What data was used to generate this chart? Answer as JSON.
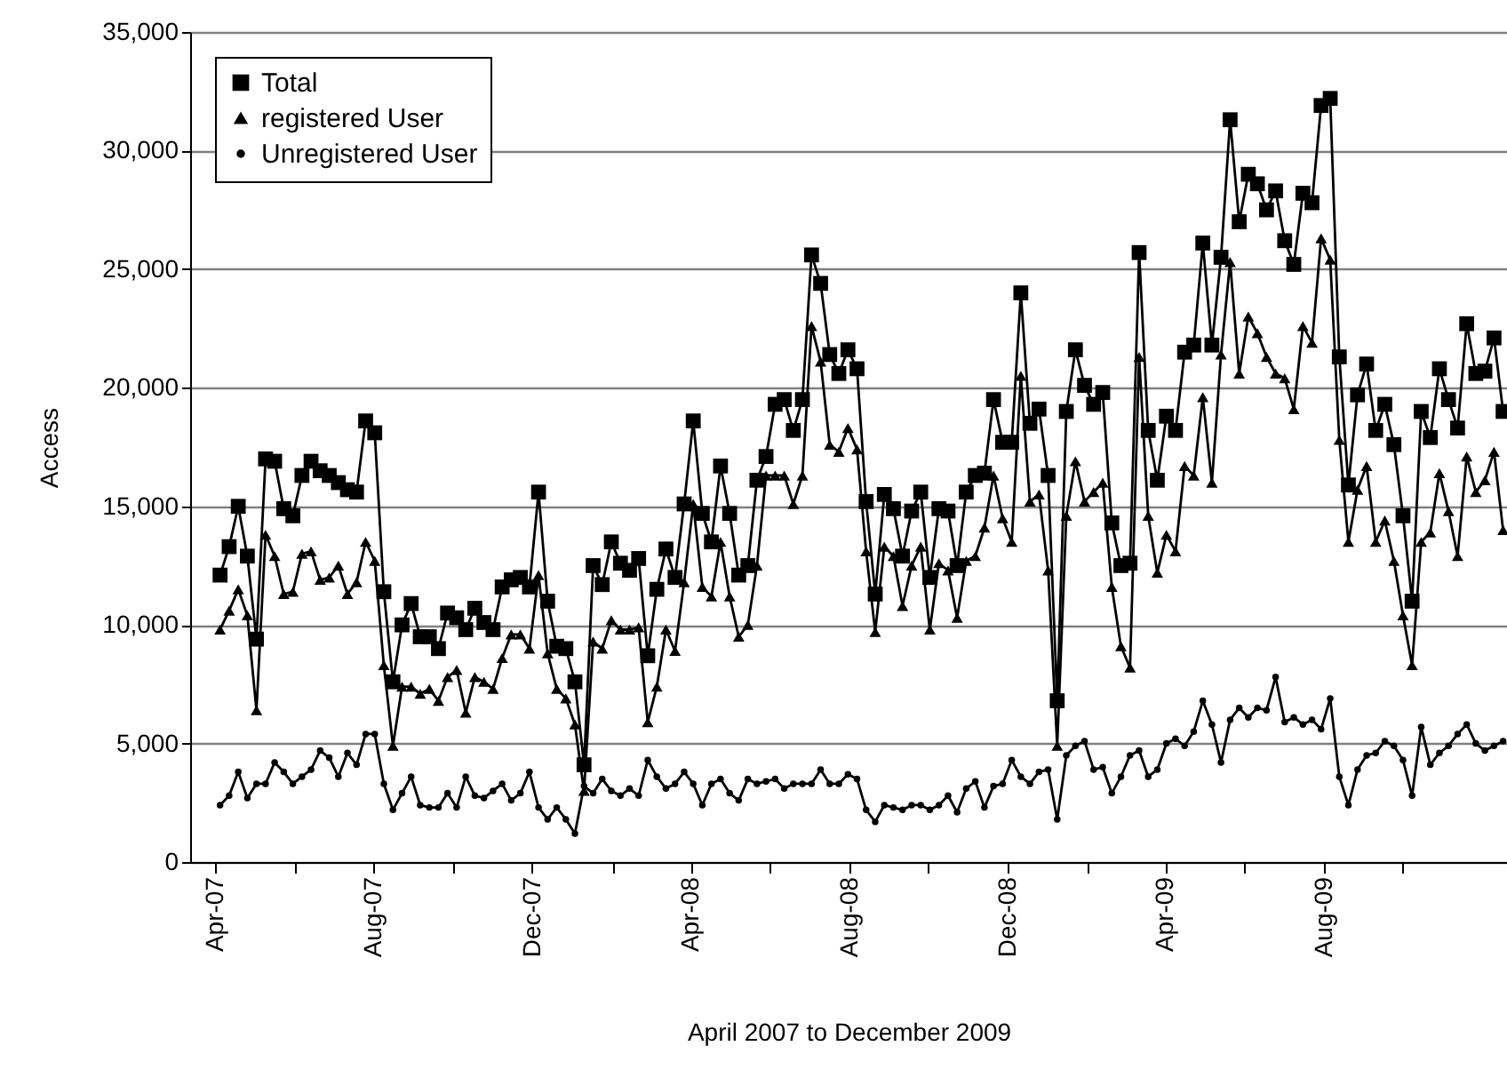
{
  "chart_data": {
    "type": "line",
    "xlabel": "April 2007 to December 2009",
    "ylabel": "Access",
    "x": [
      "2007-04-05",
      "2007-04-12",
      "2007-04-19",
      "2007-04-26",
      "2007-05-03",
      "2007-05-10",
      "2007-05-17",
      "2007-05-24",
      "2007-05-31",
      "2007-06-07",
      "2007-06-14",
      "2007-06-21",
      "2007-06-28",
      "2007-07-05",
      "2007-07-12",
      "2007-07-19",
      "2007-07-26",
      "2007-08-02",
      "2007-08-09",
      "2007-08-16",
      "2007-08-23",
      "2007-08-30",
      "2007-09-06",
      "2007-09-13",
      "2007-09-20",
      "2007-09-27",
      "2007-10-04",
      "2007-10-11",
      "2007-10-18",
      "2007-10-25",
      "2007-11-01",
      "2007-11-08",
      "2007-11-15",
      "2007-11-22",
      "2007-11-29",
      "2007-12-06",
      "2007-12-13",
      "2007-12-20",
      "2007-12-27",
      "2008-01-03",
      "2008-01-10",
      "2008-01-17",
      "2008-01-24",
      "2008-01-31",
      "2008-02-07",
      "2008-02-14",
      "2008-02-21",
      "2008-02-28",
      "2008-03-06",
      "2008-03-13",
      "2008-03-20",
      "2008-03-27",
      "2008-04-03",
      "2008-04-10",
      "2008-04-17",
      "2008-04-24",
      "2008-05-01",
      "2008-05-08",
      "2008-05-15",
      "2008-05-22",
      "2008-05-29",
      "2008-06-05",
      "2008-06-12",
      "2008-06-19",
      "2008-06-26",
      "2008-07-03",
      "2008-07-10",
      "2008-07-17",
      "2008-07-24",
      "2008-07-31",
      "2008-08-07",
      "2008-08-14",
      "2008-08-21",
      "2008-08-28",
      "2008-09-04",
      "2008-09-11",
      "2008-09-18",
      "2008-09-25",
      "2008-10-02",
      "2008-10-09",
      "2008-10-16",
      "2008-10-23",
      "2008-10-30",
      "2008-11-06",
      "2008-11-13",
      "2008-11-20",
      "2008-11-27",
      "2008-12-04",
      "2008-12-11",
      "2008-12-18",
      "2008-12-25",
      "2009-01-01",
      "2009-01-08",
      "2009-01-15",
      "2009-01-22",
      "2009-01-29",
      "2009-02-05",
      "2009-02-12",
      "2009-02-19",
      "2009-02-26",
      "2009-03-05",
      "2009-03-12",
      "2009-03-19",
      "2009-03-26",
      "2009-04-02",
      "2009-04-09",
      "2009-04-16",
      "2009-04-23",
      "2009-04-30",
      "2009-05-07",
      "2009-05-14",
      "2009-05-21",
      "2009-05-28",
      "2009-06-04",
      "2009-06-11",
      "2009-06-18",
      "2009-06-25",
      "2009-07-02",
      "2009-07-09",
      "2009-07-16",
      "2009-07-23",
      "2009-07-30",
      "2009-08-06",
      "2009-08-13",
      "2009-08-20",
      "2009-08-27",
      "2009-09-03",
      "2009-09-10",
      "2009-09-17",
      "2009-09-24",
      "2009-10-01",
      "2009-10-08",
      "2009-10-15",
      "2009-10-22",
      "2009-10-29",
      "2009-11-05",
      "2009-11-12",
      "2009-11-19",
      "2009-11-26",
      "2009-12-03",
      "2009-12-10",
      "2009-12-17"
    ],
    "xlim": [
      "2007-03-13",
      "2009-12-20"
    ],
    "xticks": [
      {
        "value": "2007-04-01",
        "label": "Apr-07"
      },
      {
        "value": "2007-06-01",
        "label": null
      },
      {
        "value": "2007-08-01",
        "label": "Aug-07"
      },
      {
        "value": "2007-10-01",
        "label": null
      },
      {
        "value": "2007-12-01",
        "label": "Dec-07"
      },
      {
        "value": "2008-02-01",
        "label": null
      },
      {
        "value": "2008-04-01",
        "label": "Apr-08"
      },
      {
        "value": "2008-06-01",
        "label": null
      },
      {
        "value": "2008-08-01",
        "label": "Aug-08"
      },
      {
        "value": "2008-10-01",
        "label": null
      },
      {
        "value": "2008-12-01",
        "label": "Dec-08"
      },
      {
        "value": "2009-02-01",
        "label": null
      },
      {
        "value": "2009-04-01",
        "label": "Apr-09"
      },
      {
        "value": "2009-06-01",
        "label": null
      },
      {
        "value": "2009-08-01",
        "label": "Aug-09"
      },
      {
        "value": "2009-10-01",
        "label": null
      }
    ],
    "ylim": [
      0,
      35000
    ],
    "yticks": [
      0,
      {
        "value": 5000,
        "label": "5,000"
      },
      {
        "value": 10000,
        "label": "10,000"
      },
      {
        "value": 15000,
        "label": "15,000"
      },
      {
        "value": 20000,
        "label": "20,000"
      },
      {
        "value": 25000,
        "label": "25,000"
      },
      {
        "value": 30000,
        "label": "30,000"
      },
      {
        "value": 35000,
        "label": "35,000"
      }
    ],
    "grid": "y",
    "legend": "top left",
    "series": [
      {
        "name": "Total",
        "color": "#000000",
        "marker": "square",
        "values": [
          12100,
          13300,
          15000,
          12900,
          9400,
          17000,
          16900,
          14900,
          14600,
          16300,
          16900,
          16500,
          16300,
          16000,
          15700,
          15600,
          18600,
          18100,
          11400,
          7600,
          10000,
          10900,
          9500,
          9500,
          9000,
          10500,
          10300,
          9800,
          10700,
          10100,
          9800,
          11600,
          11900,
          12000,
          11600,
          15600,
          11000,
          9100,
          9000,
          7600,
          4100,
          12500,
          11700,
          13500,
          12600,
          12300,
          12800,
          8700,
          11500,
          13200,
          12000,
          15100,
          18600,
          14700,
          13500,
          16700,
          14700,
          12100,
          12500,
          16100,
          17100,
          19300,
          19500,
          18200,
          19500,
          25600,
          24400,
          21400,
          20600,
          21600,
          20800,
          15200,
          11300,
          15500,
          14900,
          12900,
          14800,
          15600,
          12000,
          14900,
          14800,
          12500,
          15600,
          16300,
          16400,
          19500,
          17700,
          17700,
          24000,
          18500,
          19100,
          16300,
          6800,
          19000,
          21600,
          20100,
          19300,
          19800,
          14300,
          12500,
          12600,
          25700,
          18200,
          16100,
          18800,
          18200,
          21500,
          21800,
          26100,
          21800,
          25500,
          31300,
          27000,
          29000,
          28600,
          27500,
          28300,
          26200,
          25200,
          28200,
          27800,
          31900,
          32200,
          21300,
          15900,
          19700,
          21000,
          18200,
          19300,
          17600,
          14600,
          11000,
          19000,
          17900,
          20800,
          19500,
          18300,
          22700,
          20600,
          20700,
          22100,
          19000
        ]
      },
      {
        "name": "registered User",
        "color": "#000000",
        "marker": "triangle",
        "values": [
          9800,
          10600,
          11500,
          10400,
          6400,
          13800,
          12900,
          11300,
          11400,
          13000,
          13100,
          11900,
          12000,
          12500,
          11300,
          11800,
          13500,
          12700,
          8300,
          4900,
          7400,
          7400,
          7100,
          7300,
          6800,
          7800,
          8100,
          6300,
          7800,
          7600,
          7300,
          8600,
          9600,
          9600,
          9000,
          12100,
          8800,
          7300,
          6900,
          5800,
          3000,
          9300,
          9000,
          10200,
          9800,
          9800,
          9900,
          5900,
          7400,
          9800,
          8900,
          11800,
          15100,
          11600,
          11200,
          13500,
          11200,
          9500,
          10000,
          12500,
          16300,
          16300,
          16300,
          15100,
          16300,
          22600,
          21100,
          17600,
          17300,
          18300,
          17400,
          13100,
          9700,
          13300,
          12900,
          10800,
          12500,
          13300,
          9800,
          12600,
          12300,
          10300,
          12700,
          12900,
          14100,
          16300,
          14500,
          13500,
          20500,
          15200,
          15500,
          12300,
          4900,
          14600,
          16900,
          15200,
          15600,
          16000,
          11600,
          9100,
          8200,
          21300,
          14600,
          12200,
          13800,
          13100,
          16700,
          16300,
          19600,
          16000,
          21400,
          25300,
          20600,
          23000,
          22300,
          21300,
          20600,
          20400,
          19100,
          22600,
          21900,
          26300,
          25400,
          17800,
          13500,
          15700,
          16700,
          13500,
          14400,
          12700,
          10400,
          8300,
          13500,
          13900,
          16400,
          14800,
          12900,
          17100,
          15600,
          16100,
          17300,
          14000
        ]
      },
      {
        "name": "Unregistered User",
        "color": "#000000",
        "marker": "circle",
        "values": [
          2400,
          2800,
          3800,
          2700,
          3300,
          3300,
          4200,
          3800,
          3300,
          3600,
          3900,
          4700,
          4400,
          3600,
          4600,
          4100,
          5400,
          5400,
          3300,
          2200,
          2900,
          3600,
          2400,
          2300,
          2300,
          2900,
          2300,
          3600,
          2800,
          2700,
          3000,
          3300,
          2600,
          2900,
          3800,
          2300,
          1800,
          2300,
          1800,
          1200,
          3200,
          2900,
          3500,
          3000,
          2800,
          3100,
          2800,
          4300,
          3600,
          3100,
          3300,
          3800,
          3300,
          2400,
          3300,
          3500,
          2900,
          2600,
          3500,
          3300,
          3400,
          3500,
          3100,
          3300,
          3300,
          3300,
          3900,
          3300,
          3300,
          3700,
          3500,
          2200,
          1700,
          2400,
          2300,
          2200,
          2400,
          2400,
          2200,
          2400,
          2800,
          2100,
          3100,
          3400,
          2300,
          3200,
          3300,
          4300,
          3600,
          3300,
          3800,
          3900,
          1800,
          4500,
          4900,
          5100,
          3900,
          4000,
          2900,
          3600,
          4500,
          4700,
          3600,
          3900,
          5000,
          5200,
          4900,
          5500,
          6800,
          5800,
          4200,
          6000,
          6500,
          6100,
          6500,
          6400,
          7800,
          5900,
          6100,
          5800,
          6000,
          5600,
          6900,
          3600,
          2400,
          3900,
          4500,
          4600,
          5100,
          4900,
          4300,
          2800,
          5700,
          4100,
          4600,
          4900,
          5400,
          5800,
          5000,
          4700,
          4900,
          5100
        ]
      }
    ]
  }
}
